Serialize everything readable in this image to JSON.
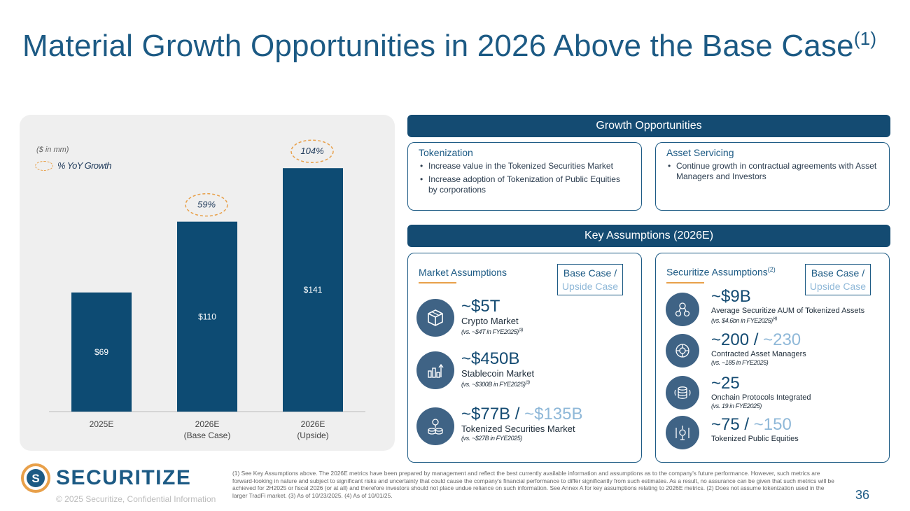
{
  "title": {
    "text": "Material Growth Opportunities in 2026 Above the Base Case",
    "footnote_ref": "(1)"
  },
  "chart_data": {
    "type": "bar",
    "units_label": "($ in mm)",
    "legend_label": "% YoY Growth",
    "categories": [
      {
        "line1": "2025E",
        "line2": ""
      },
      {
        "line1": "2026E",
        "line2": "(Base Case)"
      },
      {
        "line1": "2026E",
        "line2": "(Upside)"
      }
    ],
    "values": [
      69,
      110,
      141
    ],
    "value_labels": [
      "$69",
      "$110",
      "$141"
    ],
    "growth_labels": [
      "",
      "59%",
      "104%"
    ],
    "ylim": [
      0,
      150
    ],
    "bar_color": "#0d4b73"
  },
  "growth": {
    "header": "Growth Opportunities",
    "tokenization": {
      "title": "Tokenization",
      "bullets": [
        "Increase value in the Tokenized Securities Market",
        "Increase adoption of Tokenization of Public Equities by corporations"
      ]
    },
    "asset_servicing": {
      "title": "Asset Servicing",
      "bullets": [
        "Continue growth in contractual agreements with Asset Managers and Investors"
      ]
    }
  },
  "assumptions": {
    "header": "Key Assumptions (2026E)",
    "base_case_line1": "Base Case /",
    "base_case_line2": "Upside Case",
    "market": {
      "title": "Market Assumptions",
      "items": [
        {
          "icon": "cube-icon",
          "base": "~$5T",
          "upside": "",
          "label": "Crypto Market",
          "note": "(vs. ~$4T in FYE2025)",
          "note_ref": "(3)"
        },
        {
          "icon": "bar-chart-icon",
          "base": "~$450B",
          "upside": "",
          "label": "Stablecoin Market",
          "note": "(vs. ~$300B in FYE2025)",
          "note_ref": "(3)"
        },
        {
          "icon": "coins-icon",
          "base": "~$77B",
          "upside": "~$135B",
          "label": "Tokenized Securities Market",
          "note": "(vs. ~$27B in FYE2025)",
          "note_ref": ""
        }
      ]
    },
    "securitize": {
      "title": "Securitize Assumptions",
      "title_ref": "(2)",
      "items": [
        {
          "icon": "network-coins-icon",
          "base": "~$9B",
          "upside": "",
          "label": "Average Securitize AUM of Tokenized Assets",
          "note": "(vs. $4.6bn in FYE2025)",
          "note_ref": "(4)"
        },
        {
          "icon": "managers-icon",
          "base": "~200",
          "upside": "~230",
          "label": "Contracted Asset Managers",
          "note": "(vs. ~185 in FYE2025)",
          "note_ref": ""
        },
        {
          "icon": "protocol-icon",
          "base": "~25",
          "upside": "",
          "label": "Onchain Protocols Integrated",
          "note": "(vs. 19 in FYE2025)",
          "note_ref": ""
        },
        {
          "icon": "equity-icon",
          "base": "~75",
          "upside": "~150",
          "label": "Tokenized Public Equities",
          "note": "",
          "note_ref": ""
        }
      ]
    }
  },
  "footer": {
    "logo_text": "SECURITIZE",
    "confidential": "© 2025 Securitize, Confidential Information",
    "footnote": "(1) See Key Assumptions above. The 2026E metrics have been prepared by management and reflect the best currently available information and assumptions as to the company's future performance. However, such metrics are forward-looking in nature and subject to significant risks and uncertainty that could cause the company's financial performance to differ significantly from such estimates. As a result, no assurance can be given that such metrics will be achieved for 2H2025 or fiscal 2026 (or at all) and therefore investors should not place undue reliance on such information. See Annex A for key assumptions relating to 2026E metrics. (2) Does not assume tokenization used in the larger TradFi market. (3) As of 10/23/2025. (4) As of 10/01/25.",
    "page_number": "36"
  }
}
